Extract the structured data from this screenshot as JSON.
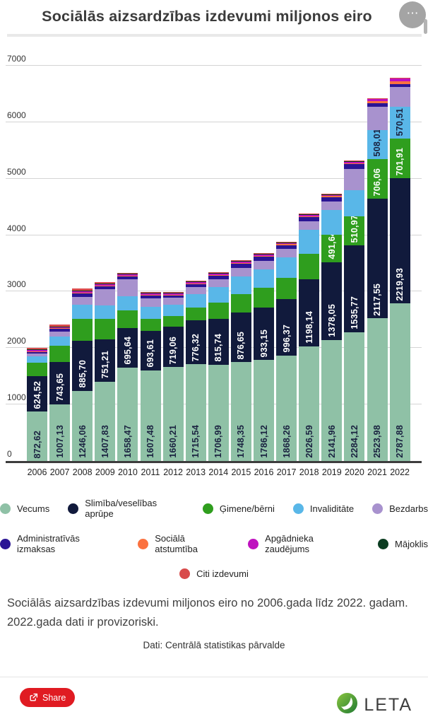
{
  "header": {
    "menu_glyph": "⋯"
  },
  "chart_data": {
    "type": "bar",
    "stacked": true,
    "title": "Sociālās aizsardzības izdevumi miljonos eiro",
    "categories": [
      "2006",
      "2007",
      "2008",
      "2009",
      "2010",
      "2011",
      "2012",
      "2013",
      "2014",
      "2015",
      "2016",
      "2017",
      "2018",
      "2019",
      "2020",
      "2021",
      "2022"
    ],
    "ylim": [
      0,
      7000
    ],
    "yticks": [
      0,
      1000,
      2000,
      3000,
      4000,
      5000,
      6000,
      7000
    ],
    "grid": true,
    "legend_position": "bottom",
    "series": [
      {
        "name": "Vecums",
        "color": "#8fc1a6",
        "label_color": "#1a2240",
        "values": [
          872.62,
          1007.13,
          1246.06,
          1407.83,
          1658.47,
          1607.48,
          1660.21,
          1715.54,
          1706.99,
          1748.35,
          1786.12,
          1868.26,
          2026.59,
          2141.96,
          2284.12,
          2523.98,
          2787.88
        ],
        "labels": [
          "872,62",
          "1007,13",
          "1246,06",
          "1407,83",
          "1658,47",
          "1607,48",
          "1660,21",
          "1715,54",
          "1706,99",
          "1748,35",
          "1786,12",
          "1868,26",
          "2026,59",
          "2141,96",
          "2284,12",
          "2523,98",
          "2787,88"
        ]
      },
      {
        "name": "Slimība/veselības aprūpe",
        "color": "#111a3c",
        "label_color": "#ffffff",
        "values": [
          624.52,
          743.65,
          885.7,
          751.21,
          695.64,
          693.61,
          719.06,
          776.32,
          815.74,
          876.65,
          933.15,
          996.37,
          1198.14,
          1378.05,
          1535.77,
          2117.55,
          2219.93
        ],
        "labels": [
          "624,52",
          "743,65",
          "885,70",
          "751,21",
          "695,64",
          "693,61",
          "719,06",
          "776,32",
          "815,74",
          "876,65",
          "933,15",
          "996,37",
          "1198,14",
          "1378,05",
          "1535,77",
          "2117,55",
          "2219,93"
        ]
      },
      {
        "name": "Ģimene/bērni",
        "color": "#2f9e1e",
        "label_color": "#ffffff",
        "values": [
          240,
          290,
          390,
          360,
          310,
          220,
          190,
          230,
          280,
          330,
          350,
          380,
          450,
          491.64,
          510.97,
          706.06,
          701.91
        ],
        "labels": [
          null,
          null,
          null,
          null,
          null,
          null,
          null,
          null,
          null,
          null,
          null,
          null,
          null,
          "491,64",
          "510,97",
          "706,06",
          "701,91"
        ]
      },
      {
        "name": "Invaliditāte",
        "color": "#59b7e8",
        "label_color": "#1a2240",
        "values": [
          117,
          165,
          240,
          240,
          250,
          210,
          200,
          230,
          280,
          320,
          330,
          360,
          420,
          430,
          460,
          508.01,
          570.51
        ],
        "labels": [
          null,
          null,
          null,
          null,
          null,
          null,
          null,
          null,
          null,
          null,
          null,
          null,
          null,
          null,
          null,
          "508,01",
          "570,51"
        ]
      },
      {
        "name": "Bezdarbs",
        "color": "#a892ce",
        "label_color": "#1a2240",
        "values": [
          50,
          90,
          150,
          280,
          300,
          150,
          120,
          130,
          140,
          150,
          150,
          150,
          150,
          150,
          380,
          420,
          340
        ]
      },
      {
        "name": "Administratīvās izmaksas",
        "color": "#2a1494",
        "label_color": "#ffffff",
        "values": [
          33,
          45,
          60,
          55,
          50,
          45,
          45,
          50,
          55,
          65,
          65,
          70,
          75,
          80,
          85,
          60,
          60
        ]
      },
      {
        "name": "Sociālā atstumtība",
        "color": "#fb713f",
        "label_color": "#ffffff",
        "values": [
          8,
          10,
          12,
          12,
          15,
          18,
          15,
          15,
          18,
          18,
          18,
          18,
          20,
          20,
          22,
          45,
          50
        ]
      },
      {
        "name": "Apgādnieka zaudējums",
        "color": "#bf11bf",
        "label_color": "#ffffff",
        "values": [
          25,
          28,
          30,
          30,
          28,
          26,
          25,
          25,
          25,
          25,
          25,
          26,
          26,
          26,
          26,
          30,
          45
        ]
      },
      {
        "name": "Mājoklis",
        "color": "#0b3c20",
        "label_color": "#ffffff",
        "values": [
          5,
          6,
          8,
          10,
          10,
          10,
          8,
          8,
          8,
          8,
          8,
          8,
          8,
          8,
          8,
          12,
          12
        ]
      },
      {
        "name": "Citi izdevumi",
        "color": "#d84b4b",
        "label_color": "#ffffff",
        "values": [
          25,
          30,
          35,
          20,
          15,
          12,
          12,
          12,
          12,
          12,
          12,
          12,
          12,
          12,
          12,
          5,
          5
        ]
      }
    ],
    "legend_rows": [
      [
        0,
        1,
        2,
        3,
        4
      ],
      [
        5,
        6,
        7,
        8
      ],
      [
        9
      ]
    ]
  },
  "description": {
    "text": "Sociālās aizsardzības izdevumi miljonos eiro no 2006.gada līdz 2022. gadam. 2022.gada dati ir provizoriski."
  },
  "source": {
    "text": "Dati: Centrālā statistikas pārvalde"
  },
  "footer": {
    "share_label": "Share",
    "logo_text": "LETA"
  }
}
